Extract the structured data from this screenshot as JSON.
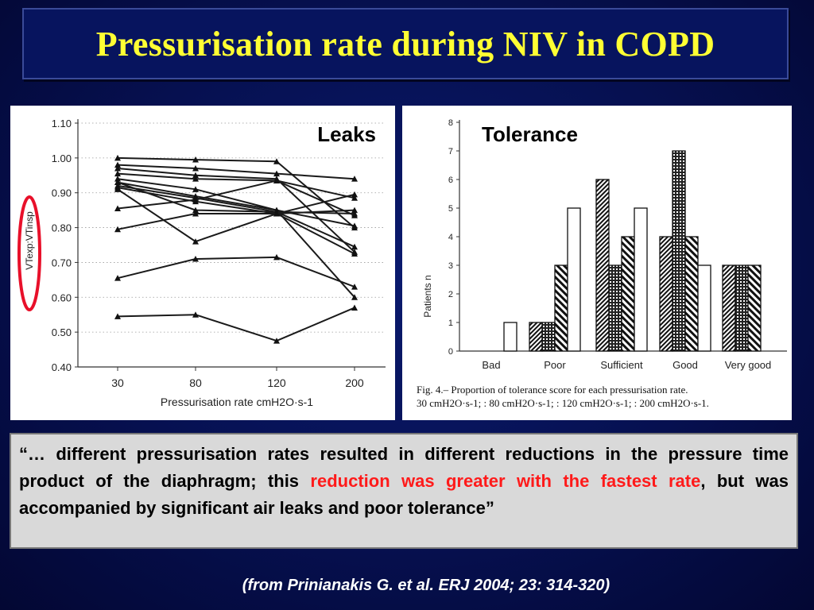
{
  "slide": {
    "title": "Pressurisation rate during NIV in COPD",
    "quote": {
      "part1": "“… different pressurisation rates resulted in different reductions in the pressure time product of the diaphragm; this ",
      "highlight": "reduction was greater with the fastest rate",
      "part2": ", but was accompanied by significant air leaks and poor tolerance”"
    },
    "citation": "(from Prinianakis G. et al. ERJ 2004; 23: 314-320)",
    "colors": {
      "title": "#ffff33",
      "highlight": "#ff1a1a",
      "background": "#061050",
      "circle": "#e8102a"
    }
  },
  "chart_data": [
    {
      "type": "line",
      "label": "Leaks",
      "ylabel": "VTexp:VTinsp",
      "xlabel": "Pressurisation rate  cmH2O·s-1",
      "x": [
        30,
        80,
        120,
        200
      ],
      "x_ticks": [
        "30",
        "80",
        "120",
        "200"
      ],
      "y_ticks": [
        "0.40",
        "0.50",
        "0.60",
        "0.70",
        "0.80",
        "0.90",
        "1.00",
        "1.10"
      ],
      "ylim": [
        0.4,
        1.1
      ],
      "series": [
        {
          "values": [
            1.0,
            0.995,
            0.99,
            0.8
          ]
        },
        {
          "values": [
            0.98,
            0.97,
            0.955,
            0.94
          ]
        },
        {
          "values": [
            0.97,
            0.95,
            0.94,
            0.73
          ]
        },
        {
          "values": [
            0.955,
            0.94,
            0.935,
            0.885
          ]
        },
        {
          "values": [
            0.94,
            0.91,
            0.85,
            0.6
          ]
        },
        {
          "values": [
            0.93,
            0.89,
            0.85,
            0.805
          ]
        },
        {
          "values": [
            0.92,
            0.885,
            0.845,
            0.745
          ]
        },
        {
          "values": [
            0.915,
            0.875,
            0.84,
            0.725
          ]
        },
        {
          "values": [
            0.91,
            0.76,
            0.84,
            0.85
          ]
        },
        {
          "values": [
            0.93,
            0.85,
            0.845,
            0.84
          ]
        },
        {
          "values": [
            0.855,
            0.88,
            0.935,
            0.835
          ]
        },
        {
          "values": [
            0.795,
            0.84,
            0.84,
            0.895
          ]
        },
        {
          "values": [
            0.655,
            0.71,
            0.715,
            0.63
          ]
        },
        {
          "values": [
            0.545,
            0.55,
            0.475,
            0.57
          ]
        }
      ]
    },
    {
      "type": "bar",
      "label": "Tolerance",
      "ylabel": "Patients n",
      "categories": [
        "Bad",
        "Poor",
        "Sufficient",
        "Good",
        "Very good"
      ],
      "y_ticks": [
        "0",
        "1",
        "2",
        "3",
        "4",
        "5",
        "6",
        "7",
        "8"
      ],
      "ylim": [
        0,
        8
      ],
      "series": [
        {
          "pattern": "fine-hatch",
          "values": [
            0,
            1,
            6,
            4,
            3
          ]
        },
        {
          "pattern": "cross-hatch",
          "values": [
            0,
            1,
            3,
            7,
            3
          ]
        },
        {
          "pattern": "coarse-hatch",
          "values": [
            0,
            3,
            4,
            4,
            3
          ]
        },
        {
          "pattern": "open",
          "values": [
            1,
            5,
            5,
            3,
            0
          ]
        }
      ],
      "caption": {
        "line1": "Fig. 4.– Proportion of tolerance score for each pressurisation rate.",
        "line2": "30 cmH2O·s-1;     : 80 cmH2O·s-1;     : 120 cmH2O·s-1;     : 200 cmH2O·s-1."
      }
    }
  ]
}
